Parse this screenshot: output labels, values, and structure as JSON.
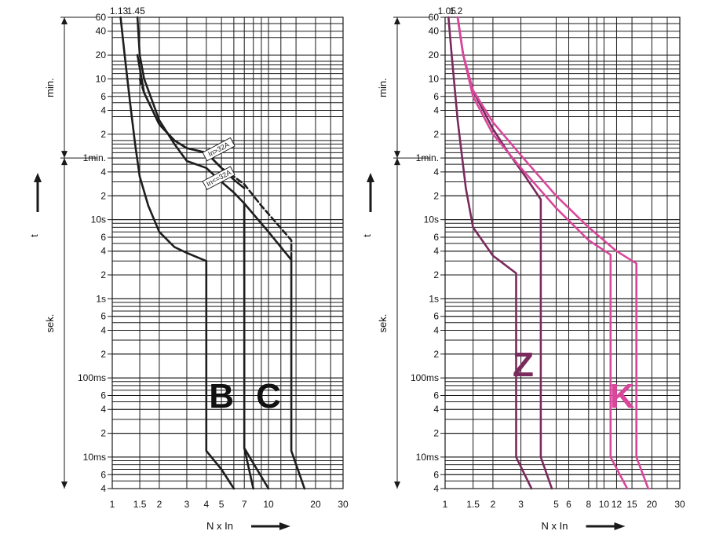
{
  "colors": {
    "grid": "#1a1a1a",
    "bc_curve": "#1e1e1e",
    "z_curve": "#7a2a5c",
    "k_curve": "#d9479b"
  },
  "chart_data": [
    {
      "type": "line",
      "title": "",
      "xlabel": "N x In",
      "ylabel": "t",
      "x_scale": "log",
      "y_scale": "log",
      "xlim": [
        1,
        30
      ],
      "ylim_seconds": [
        0.004,
        3600
      ],
      "x_ticks": [
        1,
        1.5,
        2,
        3,
        4,
        5,
        7,
        10,
        20,
        30
      ],
      "x_tick_labels": [
        "1",
        "1.5",
        "2",
        "3",
        "4",
        "5",
        "7",
        "10",
        "20",
        "30"
      ],
      "y_ticks_seconds": [
        3600,
        2400,
        1200,
        600,
        360,
        240,
        120,
        60,
        40,
        20,
        10,
        6,
        4,
        2,
        1,
        0.6,
        0.4,
        0.2,
        0.1,
        0.06,
        0.04,
        0.02,
        0.01,
        0.006,
        0.004
      ],
      "y_tick_labels": [
        "60",
        "40",
        "20",
        "10",
        "6",
        "4",
        "2",
        "1min.",
        "4",
        "2",
        "10s",
        "6",
        "4",
        "2",
        "1s",
        "6",
        "4",
        "2",
        "100ms",
        "6",
        "4",
        "2",
        "10ms",
        "6",
        "4"
      ],
      "top_labels": [
        {
          "x": 1.13,
          "text": "1.13"
        },
        {
          "x": 1.45,
          "text": "1.45"
        }
      ],
      "unit_labels": [
        {
          "text": "min.",
          "range_seconds": [
            60,
            3600
          ]
        },
        {
          "text": "sek.",
          "range_seconds": [
            0.004,
            60
          ]
        }
      ],
      "curve_labels": [
        {
          "text": "B",
          "x": 5,
          "t": 0.06
        },
        {
          "text": "C",
          "x": 10,
          "t": 0.06
        },
        {
          "text": "In>32A",
          "x": 5,
          "t": 60
        },
        {
          "text": "In<=32A",
          "x": 5,
          "t": 26
        }
      ],
      "series": [
        {
          "group": "B",
          "style": "solid",
          "points": [
            [
              1.13,
              3600
            ],
            [
              1.2,
              1200
            ],
            [
              1.3,
              300
            ],
            [
              1.4,
              90
            ],
            [
              1.5,
              35
            ],
            [
              1.7,
              15
            ],
            [
              2,
              7
            ],
            [
              2.5,
              4.5
            ],
            [
              3,
              3.8
            ],
            [
              4,
              3
            ]
          ]
        },
        {
          "group": "B",
          "style": "solid",
          "points": [
            [
              4,
              3
            ],
            [
              4,
              0.012
            ],
            [
              5,
              0.007
            ],
            [
              6,
              0.004
            ]
          ]
        },
        {
          "group": "B",
          "style": "solid",
          "points": [
            [
              1.45,
              3600
            ],
            [
              1.5,
              1200
            ],
            [
              1.6,
              600
            ],
            [
              2,
              180
            ],
            [
              2.5,
              90
            ],
            [
              3,
              55
            ],
            [
              4,
              45
            ],
            [
              5,
              30
            ],
            [
              6,
              22
            ],
            [
              7,
              16
            ],
            [
              7,
              1.8
            ]
          ]
        },
        {
          "group": "C",
          "style": "solid",
          "points": [
            [
              7,
              16
            ],
            [
              10,
              7
            ],
            [
              14,
              3.1
            ]
          ]
        },
        {
          "group": "C",
          "style": "solid",
          "points": [
            [
              7,
              16
            ],
            [
              7,
              0.013
            ],
            [
              10,
              0.004
            ]
          ]
        },
        {
          "group": "C",
          "style": "solid",
          "points": [
            [
              14,
              3.1
            ],
            [
              14,
              0.012
            ],
            [
              17,
              0.004
            ]
          ]
        },
        {
          "group": "C",
          "style": "solid",
          "points": [
            [
              1.45,
              1200
            ],
            [
              1.6,
              400
            ],
            [
              2,
              160
            ],
            [
              2.5,
              100
            ],
            [
              3,
              80
            ],
            [
              4,
              70
            ],
            [
              5,
              45
            ],
            [
              6,
              32
            ],
            [
              7,
              25
            ]
          ]
        },
        {
          "group": "C",
          "style": "dashed",
          "points": [
            [
              1.5,
              600
            ],
            [
              1.6,
              400
            ],
            [
              2,
              160
            ],
            [
              2.5,
              100
            ],
            [
              3,
              80
            ],
            [
              4,
              70
            ],
            [
              5,
              45
            ],
            [
              6,
              35
            ],
            [
              7,
              28
            ],
            [
              9,
              15
            ],
            [
              14,
              5.5
            ],
            [
              14,
              3.1
            ]
          ]
        },
        {
          "group": "B",
          "style": "solid",
          "points": [
            [
              7,
              0.013
            ],
            [
              8,
              0.004
            ]
          ]
        }
      ]
    },
    {
      "type": "line",
      "title": "",
      "xlabel": "N x In",
      "ylabel": "t",
      "x_scale": "log",
      "y_scale": "log",
      "xlim": [
        1,
        30
      ],
      "ylim_seconds": [
        0.004,
        3600
      ],
      "x_ticks": [
        1,
        1.5,
        2,
        3,
        5,
        6,
        8,
        10,
        12,
        15,
        20,
        30
      ],
      "x_tick_labels": [
        "1",
        "1.5",
        "2",
        "3",
        "5",
        "6",
        "8",
        "10",
        "12",
        "15",
        "20",
        "30"
      ],
      "y_ticks_seconds": [
        3600,
        2400,
        1200,
        600,
        360,
        240,
        120,
        60,
        40,
        20,
        10,
        6,
        4,
        2,
        1,
        0.6,
        0.4,
        0.2,
        0.1,
        0.06,
        0.04,
        0.02,
        0.01,
        0.006,
        0.004
      ],
      "y_tick_labels": [
        "60",
        "40",
        "20",
        "10",
        "6",
        "4",
        "2",
        "1min.",
        "4",
        "2",
        "10s",
        "6",
        "4",
        "2",
        "1s",
        "6",
        "4",
        "2",
        "100ms",
        "6",
        "4",
        "2",
        "10ms",
        "6",
        "4"
      ],
      "top_labels": [
        {
          "x": 1.05,
          "text": "1.05"
        },
        {
          "x": 1.2,
          "text": "1.2"
        }
      ],
      "unit_labels": [
        {
          "text": "min.",
          "range_seconds": [
            60,
            3600
          ]
        },
        {
          "text": "sek.",
          "range_seconds": [
            0.004,
            60
          ]
        }
      ],
      "curve_labels": [
        {
          "text": "Z",
          "x": 3.1,
          "t": 0.15
        },
        {
          "text": "K",
          "x": 13,
          "t": 0.06
        }
      ],
      "series": [
        {
          "group": "Z",
          "style": "solid",
          "points": [
            [
              1.05,
              3600
            ],
            [
              1.1,
              1200
            ],
            [
              1.2,
              180
            ],
            [
              1.35,
              25
            ],
            [
              1.5,
              8
            ],
            [
              2,
              3.5
            ],
            [
              2.8,
              2.1
            ],
            [
              2.8,
              0.01
            ],
            [
              3.5,
              0.004
            ]
          ]
        },
        {
          "group": "Z",
          "style": "solid",
          "points": [
            [
              1.2,
              3600
            ],
            [
              1.3,
              1200
            ],
            [
              1.5,
              420
            ],
            [
              2,
              140
            ],
            [
              2.5,
              70
            ],
            [
              3.2,
              35
            ],
            [
              4,
              18
            ],
            [
              4,
              0.01
            ],
            [
              4.7,
              0.004
            ]
          ]
        },
        {
          "group": "K",
          "style": "solid",
          "points": [
            [
              1.2,
              3600
            ],
            [
              1.3,
              1200
            ],
            [
              1.5,
              360
            ],
            [
              2,
              120
            ],
            [
              3,
              45
            ],
            [
              5,
              14
            ],
            [
              8,
              5.5
            ],
            [
              11,
              3.6
            ],
            [
              11,
              2.2
            ],
            [
              11,
              0.01
            ],
            [
              14,
              0.004
            ]
          ]
        },
        {
          "group": "K",
          "style": "solid",
          "points": [
            [
              1.2,
              3600
            ],
            [
              1.3,
              1200
            ],
            [
              1.5,
              430
            ],
            [
              2,
              170
            ],
            [
              3,
              65
            ],
            [
              5,
              20
            ],
            [
              8,
              8
            ],
            [
              12,
              4
            ],
            [
              16,
              2.8
            ],
            [
              16,
              2.3
            ],
            [
              16,
              0.01
            ],
            [
              19,
              0.004
            ]
          ]
        }
      ]
    }
  ]
}
